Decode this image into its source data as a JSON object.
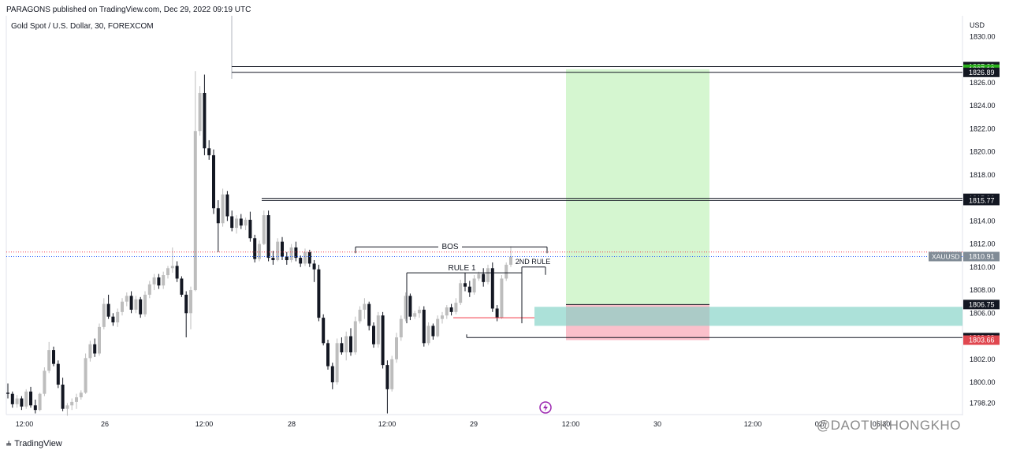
{
  "header": {
    "published": "PARAGONS published on TradingView.com, Dec 29, 2022 09:19 UTC",
    "symbol": "Gold Spot / U.S. Dollar, 30, FOREXCOM"
  },
  "axis": {
    "currency": "USD",
    "price_ticks": [
      "1830.00",
      "1826.00",
      "1824.00",
      "1822.00",
      "1820.00",
      "1818.00",
      "1814.00",
      "1812.00",
      "1810.00",
      "1808.00",
      "1806.00",
      "1802.00",
      "1800.00",
      "1798.20"
    ],
    "time_ticks": [
      "12:00",
      "26",
      "12:00",
      "28",
      "12:00",
      "29",
      "12:00",
      "30",
      "12:00",
      "02/",
      "05:30"
    ]
  },
  "price_labels": [
    {
      "text": "1827.39",
      "color": "#131722"
    },
    {
      "text": "1827.16",
      "color": "#2ab11c"
    },
    {
      "text": "1826.89",
      "color": "#131722"
    },
    {
      "text": "1815.96",
      "color": "#131722"
    },
    {
      "text": "1815.77",
      "color": "#131722"
    },
    {
      "text": "1810.91",
      "color": "#808b96"
    },
    {
      "text": "1806.75",
      "color": "#131722"
    },
    {
      "text": "1803.88",
      "color": "#131722"
    },
    {
      "text": "1803.66",
      "color": "#e0474f"
    }
  ],
  "ticker_tag": "XAUUSD",
  "annotations": {
    "bos": "BOS",
    "rule1": "RULE 1",
    "rule2": "2ND RULE"
  },
  "footer": {
    "brand": "TradingView"
  },
  "watermark": "@DAOTUKHONGKHO",
  "colors": {
    "bull": "#bdbdbd",
    "bear": "#131722",
    "target": "#b9f0b0",
    "stop": "#fbb9c5",
    "zone": "#7fd1c4"
  },
  "chart_data": {
    "type": "candlestick",
    "title": "Gold Spot / U.S. Dollar, 30, FOREXCOM",
    "ylabel": "USD",
    "ylim": [
      1797.2,
      1831.8
    ],
    "candles": [
      [
        1799.1,
        1799.9,
        1798.6,
        1799.0
      ],
      [
        1799.0,
        1799.2,
        1797.8,
        1798.1
      ],
      [
        1798.1,
        1798.9,
        1797.8,
        1798.6
      ],
      [
        1798.6,
        1798.8,
        1797.6,
        1797.9
      ],
      [
        1797.9,
        1799.4,
        1797.7,
        1799.2
      ],
      [
        1799.2,
        1799.6,
        1797.8,
        1798.0
      ],
      [
        1798.0,
        1798.5,
        1797.3,
        1797.6
      ],
      [
        1797.6,
        1799.1,
        1797.5,
        1799.0
      ],
      [
        1799.0,
        1801.3,
        1798.8,
        1801.0
      ],
      [
        1801.0,
        1803.5,
        1800.8,
        1802.8
      ],
      [
        1802.8,
        1803.1,
        1801.4,
        1801.6
      ],
      [
        1801.6,
        1801.9,
        1799.5,
        1799.8
      ],
      [
        1799.8,
        1800.4,
        1797.5,
        1797.7
      ],
      [
        1797.7,
        1798.2,
        1797.1,
        1798.0
      ],
      [
        1798.0,
        1798.6,
        1797.6,
        1798.3
      ],
      [
        1798.3,
        1799.0,
        1797.7,
        1798.7
      ],
      [
        1798.7,
        1799.3,
        1798.5,
        1799.1
      ],
      [
        1799.1,
        1802.5,
        1799.0,
        1802.1
      ],
      [
        1802.1,
        1803.6,
        1801.8,
        1803.3
      ],
      [
        1803.3,
        1803.8,
        1802.2,
        1802.5
      ],
      [
        1802.5,
        1805.1,
        1802.3,
        1804.8
      ],
      [
        1804.8,
        1807.3,
        1804.6,
        1806.8
      ],
      [
        1806.8,
        1807.6,
        1805.5,
        1805.7
      ],
      [
        1805.7,
        1806.0,
        1804.9,
        1805.2
      ],
      [
        1805.2,
        1806.4,
        1804.8,
        1806.1
      ],
      [
        1806.1,
        1807.3,
        1805.8,
        1807.0
      ],
      [
        1807.0,
        1807.8,
        1806.6,
        1807.5
      ],
      [
        1807.5,
        1807.9,
        1806.0,
        1806.3
      ],
      [
        1806.3,
        1807.5,
        1806.0,
        1807.2
      ],
      [
        1807.2,
        1807.4,
        1805.6,
        1805.9
      ],
      [
        1805.9,
        1807.9,
        1805.7,
        1807.6
      ],
      [
        1807.6,
        1808.8,
        1807.3,
        1808.5
      ],
      [
        1808.5,
        1809.4,
        1808.0,
        1809.1
      ],
      [
        1809.1,
        1809.4,
        1808.1,
        1808.4
      ],
      [
        1808.4,
        1809.6,
        1808.1,
        1809.3
      ],
      [
        1809.3,
        1810.1,
        1809.0,
        1809.9
      ],
      [
        1809.9,
        1811.7,
        1809.5,
        1810.1
      ],
      [
        1810.1,
        1810.5,
        1808.7,
        1809.0
      ],
      [
        1809.0,
        1809.2,
        1807.4,
        1807.6
      ],
      [
        1807.6,
        1807.9,
        1803.9,
        1806.0
      ],
      [
        1806.0,
        1808.3,
        1804.6,
        1808.0
      ],
      [
        1808.0,
        1827.0,
        1807.9,
        1821.8
      ],
      [
        1821.8,
        1825.7,
        1821.4,
        1825.1
      ],
      [
        1825.1,
        1826.7,
        1819.7,
        1820.3
      ],
      [
        1820.3,
        1821.0,
        1819.3,
        1819.7
      ],
      [
        1819.7,
        1820.2,
        1814.6,
        1815.1
      ],
      [
        1815.1,
        1815.8,
        1811.3,
        1813.8
      ],
      [
        1813.8,
        1816.8,
        1813.5,
        1816.3
      ],
      [
        1816.3,
        1816.6,
        1814.0,
        1814.4
      ],
      [
        1814.4,
        1814.9,
        1813.1,
        1813.4
      ],
      [
        1813.4,
        1814.5,
        1812.9,
        1814.2
      ],
      [
        1814.2,
        1814.6,
        1813.3,
        1813.6
      ],
      [
        1813.6,
        1814.3,
        1813.2,
        1814.1
      ],
      [
        1814.1,
        1814.8,
        1812.2,
        1812.5
      ],
      [
        1812.5,
        1812.8,
        1810.4,
        1810.7
      ],
      [
        1810.7,
        1812.3,
        1810.5,
        1812.0
      ],
      [
        1812.0,
        1814.9,
        1811.9,
        1814.5
      ],
      [
        1814.5,
        1814.9,
        1810.5,
        1810.8
      ],
      [
        1810.8,
        1811.4,
        1810.2,
        1810.6
      ],
      [
        1810.6,
        1812.5,
        1810.5,
        1812.2
      ],
      [
        1812.2,
        1812.6,
        1810.6,
        1810.9
      ],
      [
        1810.9,
        1811.3,
        1810.2,
        1810.6
      ],
      [
        1810.6,
        1812.0,
        1810.4,
        1811.7
      ],
      [
        1811.7,
        1812.2,
        1810.5,
        1810.8
      ],
      [
        1810.8,
        1811.0,
        1810.0,
        1810.3
      ],
      [
        1810.3,
        1811.6,
        1810.1,
        1811.3
      ],
      [
        1811.3,
        1811.5,
        1810.0,
        1810.3
      ],
      [
        1810.3,
        1810.6,
        1808.7,
        1809.8
      ],
      [
        1809.8,
        1810.2,
        1805.3,
        1805.6
      ],
      [
        1805.6,
        1805.9,
        1803.2,
        1803.4
      ],
      [
        1803.4,
        1803.7,
        1801.1,
        1801.4
      ],
      [
        1801.4,
        1801.7,
        1799.4,
        1800.0
      ],
      [
        1800.0,
        1803.8,
        1799.8,
        1803.4
      ],
      [
        1803.4,
        1803.9,
        1802.4,
        1802.6
      ],
      [
        1802.6,
        1804.4,
        1801.9,
        1804.0
      ],
      [
        1804.0,
        1804.7,
        1802.3,
        1802.6
      ],
      [
        1802.6,
        1805.7,
        1802.4,
        1805.3
      ],
      [
        1805.3,
        1806.6,
        1805.1,
        1806.3
      ],
      [
        1806.3,
        1807.3,
        1805.5,
        1806.8
      ],
      [
        1806.8,
        1807.0,
        1804.5,
        1804.9
      ],
      [
        1804.9,
        1805.2,
        1803.0,
        1803.3
      ],
      [
        1803.3,
        1806.1,
        1803.0,
        1805.8
      ],
      [
        1805.8,
        1806.1,
        1801.2,
        1801.5
      ],
      [
        1801.5,
        1801.9,
        1797.3,
        1799.4
      ],
      [
        1799.4,
        1802.3,
        1799.2,
        1802.0
      ],
      [
        1802.0,
        1804.3,
        1801.7,
        1803.9
      ],
      [
        1803.9,
        1805.8,
        1803.6,
        1805.5
      ],
      [
        1805.5,
        1807.8,
        1805.3,
        1807.5
      ],
      [
        1807.5,
        1807.7,
        1805.4,
        1805.7
      ],
      [
        1805.7,
        1806.2,
        1805.5,
        1806.0
      ],
      [
        1806.0,
        1806.6,
        1805.6,
        1806.3
      ],
      [
        1806.3,
        1806.6,
        1803.1,
        1803.4
      ],
      [
        1803.4,
        1805.2,
        1803.2,
        1804.9
      ],
      [
        1804.9,
        1805.1,
        1803.7,
        1804.0
      ],
      [
        1804.0,
        1805.8,
        1803.9,
        1805.5
      ],
      [
        1805.5,
        1806.1,
        1805.1,
        1805.8
      ],
      [
        1805.8,
        1806.7,
        1805.5,
        1806.5
      ],
      [
        1806.5,
        1806.8,
        1805.8,
        1806.1
      ],
      [
        1806.1,
        1807.3,
        1805.9,
        1806.9
      ],
      [
        1806.9,
        1808.9,
        1806.7,
        1808.6
      ],
      [
        1808.6,
        1809.5,
        1807.9,
        1808.3
      ],
      [
        1808.3,
        1808.8,
        1807.4,
        1807.8
      ],
      [
        1807.8,
        1809.3,
        1807.6,
        1809.0
      ],
      [
        1809.0,
        1809.6,
        1808.8,
        1809.4
      ],
      [
        1809.4,
        1809.9,
        1808.3,
        1808.7
      ],
      [
        1808.7,
        1810.2,
        1808.5,
        1809.9
      ],
      [
        1809.9,
        1810.4,
        1806.1,
        1806.4
      ],
      [
        1806.4,
        1806.7,
        1805.3,
        1805.6
      ],
      [
        1805.6,
        1809.3,
        1805.5,
        1809.0
      ],
      [
        1809.0,
        1810.4,
        1808.8,
        1810.2
      ],
      [
        1810.2,
        1811.8,
        1810.0,
        1810.9
      ]
    ]
  }
}
